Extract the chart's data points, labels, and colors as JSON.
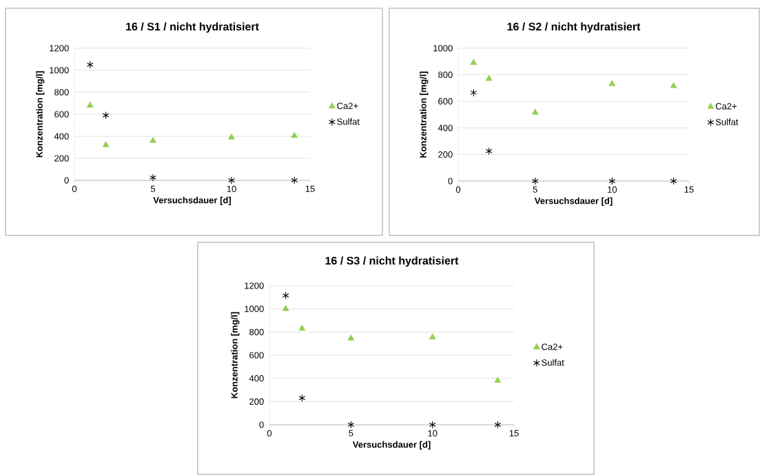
{
  "chart_data": [
    {
      "type": "scatter",
      "title": "16 / S1 / nicht hydratisiert",
      "xlabel": "Versuchsdauer [d]",
      "ylabel": "Konzentration [mg/l]",
      "x": [
        1,
        2,
        5,
        10,
        14
      ],
      "series": [
        {
          "name": "Ca2+",
          "color": "#92d050",
          "marker": "triangle",
          "values": [
            680,
            320,
            360,
            390,
            405
          ]
        },
        {
          "name": "Sulfat",
          "color": "#000000",
          "marker": "cross",
          "values": [
            1050,
            590,
            25,
            0,
            0
          ]
        }
      ],
      "xlim": [
        0,
        15
      ],
      "ylim": [
        0,
        1200
      ],
      "xticks": [
        0,
        5,
        10,
        15
      ],
      "yticks": [
        0,
        200,
        400,
        600,
        800,
        1000,
        1200
      ],
      "grid": "y",
      "legend": "right"
    },
    {
      "type": "scatter",
      "title": "16 / S2 / nicht hydratisiert",
      "xlabel": "Versuchsdauer [d]",
      "ylabel": "Konzentration [mg/l]",
      "x": [
        1,
        2,
        5,
        10,
        14
      ],
      "series": [
        {
          "name": "Ca2+",
          "color": "#92d050",
          "marker": "triangle",
          "values": [
            890,
            770,
            515,
            730,
            715
          ]
        },
        {
          "name": "Sulfat",
          "color": "#000000",
          "marker": "cross",
          "values": [
            665,
            225,
            0,
            0,
            0
          ]
        }
      ],
      "xlim": [
        0,
        15
      ],
      "ylim": [
        0,
        1000
      ],
      "xticks": [
        0,
        5,
        10,
        15
      ],
      "yticks": [
        0,
        200,
        400,
        600,
        800,
        1000
      ],
      "grid": "y",
      "legend": "right"
    },
    {
      "type": "scatter",
      "title": "16 / S3 / nicht hydratisiert",
      "xlabel": "Versuchsdauer [d]",
      "ylabel": "Konzentration [mg/l]",
      "x": [
        1,
        2,
        5,
        10,
        14
      ],
      "series": [
        {
          "name": "Ca2+",
          "color": "#92d050",
          "marker": "triangle",
          "values": [
            1000,
            830,
            745,
            755,
            380
          ]
        },
        {
          "name": "Sulfat",
          "color": "#000000",
          "marker": "cross",
          "values": [
            1115,
            230,
            0,
            0,
            0
          ]
        }
      ],
      "xlim": [
        0,
        15
      ],
      "ylim": [
        0,
        1200
      ],
      "xticks": [
        0,
        5,
        10,
        15
      ],
      "yticks": [
        0,
        200,
        400,
        600,
        800,
        1000,
        1200
      ],
      "grid": "y",
      "legend": "right"
    }
  ]
}
